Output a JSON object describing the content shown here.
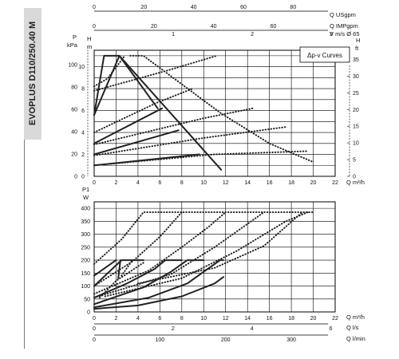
{
  "product": {
    "model": "EVOPLUS D110/250.40 M"
  },
  "legend": {
    "curve_type": "Δp-v Curves"
  },
  "colors": {
    "curve": "#222222",
    "grid": "#000000",
    "background": "#ffffff",
    "side_tab": "#d9d9d9"
  },
  "chart_data": [
    {
      "type": "line",
      "id": "head",
      "left_axis_label": "P",
      "left_axis_unit": "kPa",
      "left_axis_label2": "H",
      "left_axis_unit2": "m",
      "right_axis_label": "H",
      "right_axis_unit": "ft",
      "x_label": "Q m³/h",
      "xlim": [
        0,
        22
      ],
      "ylim_m": [
        0,
        11.5
      ],
      "x_ticks": [
        "0",
        "2",
        "4",
        "6",
        "8",
        "10",
        "12",
        "14",
        "16",
        "18",
        "20",
        "22"
      ],
      "y_ticks": [
        "0",
        "2",
        "4",
        "6",
        "8",
        "10"
      ],
      "kpa_ticks": [
        "0",
        "20",
        "40",
        "60",
        "80",
        "100"
      ],
      "ft_ticks": [
        "0",
        "5",
        "10",
        "15",
        "20",
        "25",
        "30",
        "35"
      ],
      "top_axes": [
        {
          "label": "Q USgpm",
          "ticks": [
            "0",
            "20",
            "40",
            "60",
            "80"
          ],
          "max": 96.9
        },
        {
          "label": "Q IMPgpm",
          "ticks": [
            "0",
            "20",
            "40",
            "60"
          ],
          "max": 80.7
        },
        {
          "label": "V m/s Ø 65",
          "ticks": [
            "1",
            "2",
            "3"
          ],
          "max": 3.05
        }
      ],
      "series": [
        {
          "style": "solid",
          "points": [
            [
              0,
              5.6
            ],
            [
              2.3,
              11
            ],
            [
              5.8,
              6.2
            ]
          ]
        },
        {
          "style": "solid",
          "points": [
            [
              0,
              5.6
            ],
            [
              0.9,
              11
            ],
            [
              2.3,
              11
            ]
          ]
        },
        {
          "style": "solid",
          "points": [
            [
              0,
              3
            ],
            [
              6.2,
              6.2
            ]
          ]
        },
        {
          "style": "solid",
          "points": [
            [
              0,
              2
            ],
            [
              7.7,
              4.2
            ]
          ]
        },
        {
          "style": "solid",
          "points": [
            [
              0,
              1
            ],
            [
              9.6,
              2
            ]
          ]
        },
        {
          "style": "solid",
          "points": [
            [
              2.3,
              11
            ],
            [
              11.6,
              0.6
            ]
          ]
        },
        {
          "style": "dotted",
          "points": [
            [
              0,
              7.8
            ],
            [
              6.5,
              9.6
            ],
            [
              11.2,
              11
            ]
          ]
        },
        {
          "style": "dotted",
          "points": [
            [
              0,
              4
            ],
            [
              5.7,
              6.7
            ],
            [
              9,
              8
            ]
          ]
        },
        {
          "style": "dotted",
          "points": [
            [
              0,
              2.9
            ],
            [
              10,
              5.3
            ],
            [
              14.5,
              6.2
            ]
          ]
        },
        {
          "style": "dotted",
          "points": [
            [
              0,
              1.9
            ],
            [
              10,
              3.5
            ],
            [
              17.5,
              4.5
            ]
          ]
        },
        {
          "style": "dotted",
          "points": [
            [
              0,
              1
            ],
            [
              11,
              2
            ],
            [
              19.5,
              2.3
            ]
          ]
        },
        {
          "style": "dotted",
          "points": [
            [
              3.3,
              11
            ],
            [
              4.5,
              11
            ],
            [
              11.5,
              5.8
            ],
            [
              16,
              3
            ],
            [
              20,
              1.3
            ]
          ]
        },
        {
          "style": "dotted",
          "points": [
            [
              0,
              8.2
            ],
            [
              1.2,
              8.9
            ],
            [
              2.8,
              11
            ]
          ]
        }
      ]
    },
    {
      "type": "line",
      "id": "power",
      "y_label": "P1",
      "y_unit": "W",
      "x_label": "Q m³/h",
      "xlim": [
        0,
        22
      ],
      "ylim": [
        0,
        425
      ],
      "x_ticks": [
        "0",
        "2",
        "4",
        "6",
        "8",
        "10",
        "12",
        "14",
        "16",
        "18",
        "20",
        "22"
      ],
      "y_ticks": [
        "0",
        "50",
        "100",
        "150",
        "200",
        "250",
        "300",
        "350",
        "400"
      ],
      "bottom_axes": [
        {
          "label": "Q l/s",
          "ticks": [
            "0",
            "2",
            "4",
            "6"
          ],
          "max": 6.11
        },
        {
          "label": "Q l/min",
          "ticks": [
            "0",
            "100",
            "200",
            "300"
          ],
          "max": 366.7
        }
      ],
      "series": [
        {
          "style": "solid",
          "points": [
            [
              0,
              100
            ],
            [
              1.5,
              160
            ],
            [
              2.5,
              200
            ],
            [
              4.5,
              200
            ]
          ]
        },
        {
          "style": "solid",
          "points": [
            [
              0,
              55
            ],
            [
              3,
              110
            ],
            [
              5.5,
              165
            ],
            [
              6.5,
              200
            ],
            [
              8,
              200
            ]
          ]
        },
        {
          "style": "solid",
          "points": [
            [
              0,
              30
            ],
            [
              4.5,
              95
            ],
            [
              7,
              155
            ],
            [
              8.5,
              200
            ],
            [
              10,
              200
            ]
          ]
        },
        {
          "style": "solid",
          "points": [
            [
              0,
              18
            ],
            [
              5,
              55
            ],
            [
              8.5,
              110
            ],
            [
              10.5,
              170
            ],
            [
              11.5,
              200
            ],
            [
              11.8,
              200
            ]
          ]
        },
        {
          "style": "solid",
          "points": [
            [
              0,
              12
            ],
            [
              4,
              25
            ],
            [
              8,
              60
            ],
            [
              11,
              110
            ],
            [
              11.8,
              135
            ]
          ]
        },
        {
          "style": "solid",
          "points": [
            [
              0,
              140
            ],
            [
              1,
              170
            ],
            [
              2,
              200
            ]
          ]
        },
        {
          "style": "solid",
          "points": [
            [
              2.2,
              130
            ],
            [
              2.4,
              200
            ]
          ]
        },
        {
          "style": "dotted",
          "points": [
            [
              0,
              185
            ],
            [
              2.5,
              280
            ],
            [
              4.5,
              385
            ],
            [
              20,
              385
            ]
          ]
        },
        {
          "style": "dotted",
          "points": [
            [
              0,
              100
            ],
            [
              3.5,
              195
            ],
            [
              6,
              290
            ],
            [
              8,
              385
            ]
          ]
        },
        {
          "style": "dotted",
          "points": [
            [
              0,
              70
            ],
            [
              5,
              160
            ],
            [
              8,
              250
            ],
            [
              10.5,
              330
            ],
            [
              12,
              385
            ]
          ]
        },
        {
          "style": "dotted",
          "points": [
            [
              0,
              55
            ],
            [
              7,
              145
            ],
            [
              11,
              250
            ],
            [
              15.5,
              385
            ]
          ]
        },
        {
          "style": "dotted",
          "points": [
            [
              1,
              60
            ],
            [
              8,
              130
            ],
            [
              13,
              235
            ],
            [
              17.5,
              350
            ],
            [
              19.5,
              385
            ]
          ]
        },
        {
          "style": "dotted",
          "points": [
            [
              4,
              110
            ],
            [
              11,
              170
            ],
            [
              15.5,
              255
            ],
            [
              19,
              385
            ]
          ]
        },
        {
          "style": "dotted",
          "points": [
            [
              2.5,
              140
            ],
            [
              3.5,
              200
            ]
          ]
        },
        {
          "style": "dotted",
          "points": [
            [
              0.5,
              55
            ],
            [
              2,
              120
            ],
            [
              4.5,
              190
            ]
          ]
        }
      ]
    }
  ]
}
